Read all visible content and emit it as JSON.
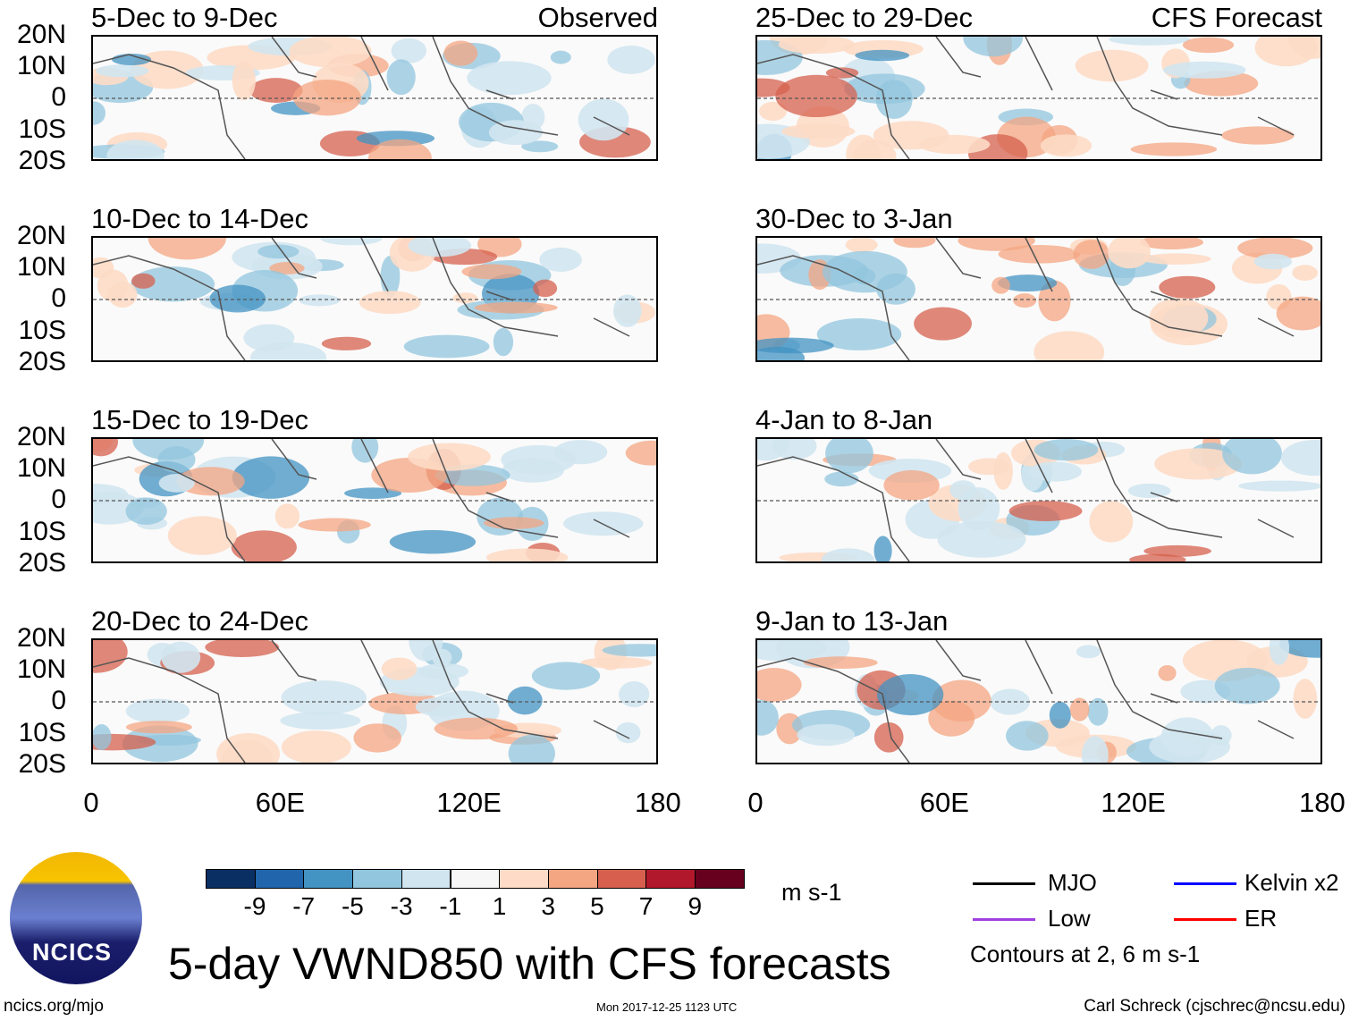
{
  "panels_left": [
    {
      "title": "5-Dec to 9-Dec",
      "tag": "Observed"
    },
    {
      "title": "10-Dec to 14-Dec"
    },
    {
      "title": "15-Dec to 19-Dec"
    },
    {
      "title": "20-Dec to 24-Dec"
    }
  ],
  "panels_right": [
    {
      "title": "25-Dec to 29-Dec",
      "tag": "CFS Forecast"
    },
    {
      "title": "30-Dec to 3-Jan"
    },
    {
      "title": "4-Jan to 8-Jan"
    },
    {
      "title": "9-Jan to 13-Jan"
    }
  ],
  "lat_labels": [
    "20N",
    "10N",
    "0",
    "10S",
    "20S"
  ],
  "lon_labels": [
    "0",
    "60E",
    "120E",
    "180"
  ],
  "colorbar": {
    "colors": [
      "#0a2f63",
      "#2166ac",
      "#4393c3",
      "#92c5de",
      "#d1e5f0",
      "#f7f7f7",
      "#fddbc7",
      "#f4a582",
      "#d6604d",
      "#b2182b",
      "#67001f"
    ],
    "labels": [
      "-9",
      "-7",
      "-5",
      "-3",
      "-1",
      "1",
      "3",
      "5",
      "7",
      "9"
    ],
    "units": "m s-1"
  },
  "legend": {
    "items": [
      {
        "label": "MJO",
        "color": "#000000"
      },
      {
        "label": "Kelvin x2",
        "color": "#0000ff"
      },
      {
        "label": "Low",
        "color": "#a040e0"
      },
      {
        "label": "ER",
        "color": "#ff0000"
      }
    ],
    "note": "Contours at 2, 6 m s-1"
  },
  "logo_text": "NCICS",
  "title": "5-day VWND850 with CFS forecasts",
  "footer": {
    "url": "ncics.org/mjo",
    "timestamp": "Mon 2017-12-25 1123 UTC",
    "author": "Carl Schreck (cjschrec@ncsu.edu)"
  }
}
